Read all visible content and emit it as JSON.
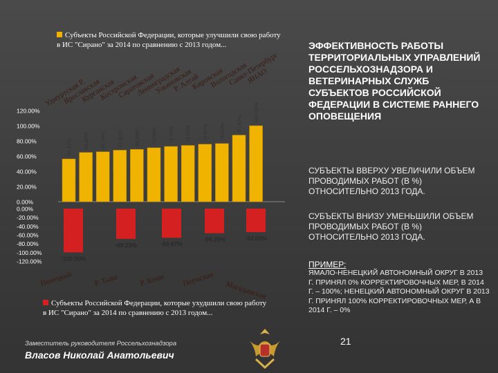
{
  "legend": {
    "positive": {
      "label": "Субъекты Российской Федерации, которые улучшили свою работу в ИС \"Сирано\" за 2014 по сравнению с 2013 годом...",
      "color": "#f0b400"
    },
    "negative": {
      "label": "Субъекты Российской Федерации, которые ухудшили свою работу в ИС \"Сирано\" за 2014 по сравнению с 2013 годом...",
      "color": "#d42020"
    }
  },
  "chart_data": {
    "type": "bar",
    "yaxis_ticks": [
      "120.00%",
      "100.00%",
      "80.00%",
      "60.00%",
      "40.00%",
      "20.00%",
      "0.00%",
      "0.00%",
      "-20.00%",
      "-40.00%",
      "-60.00%",
      "-80.00%",
      "-100.00%",
      "-120.00%"
    ],
    "ylim": [
      -120,
      120
    ],
    "positive_series": {
      "categories": [
        "Удмуртская Р.",
        "Ярославская",
        "Курганская",
        "Костромская",
        "Саратовская",
        "Ленинградская",
        "Ульяновская",
        "Р. Алтай",
        "Кировская",
        "Вологодская",
        "Санкт-Петербург",
        "ЯНАО"
      ],
      "values": [
        56.32,
        64.82,
        65.74,
        67.8,
        68.88,
        70.98,
        72.73,
        74.07,
        75.67,
        76.52,
        87.67,
        100.0
      ],
      "labels": [
        "56.32%",
        "64.82%",
        "65.74%",
        "67.80%",
        "68.88%",
        "70.98%",
        "72.73%",
        "74.07%",
        "75.67%",
        "76.52%",
        "87.67%",
        "100.00%"
      ]
    },
    "negative_series": {
      "categories": [
        "Ненецкий",
        "Р. Тыва",
        "Р. Коми",
        "Пермская",
        "Магаданская"
      ],
      "values": [
        -100.0,
        -69.23,
        -66.67,
        -56.25,
        -53.69
      ],
      "labels": [
        "-100.00%",
        "-69.23%",
        "-66.67%",
        "-56.25%",
        "-53.69%"
      ]
    }
  },
  "panel": {
    "heading": "ЭФФЕКТИВНОСТЬ РАБОТЫ ТЕРРИТОРИАЛЬНЫХ УПРАВЛЕНИЙ РОССЕЛЬХОЗНАДЗОРА И ВЕТЕРИНАРНЫХ СЛУЖБ СУБЪЕКТОВ РОССИЙСКОЙ ФЕДЕРАЦИИ В СИСТЕМЕ РАННЕГО ОПОВЕЩЕНИЯ",
    "note_up": "СУБЪЕКТЫ ВВЕРХУ УВЕЛИЧИЛИ ОБЪЕМ ПРОВОДИМЫХ РАБОТ (В %) ОТНОСИТЕЛЬНО 2013 ГОДА.",
    "note_down": "СУБЪЕКТЫ ВНИЗУ УМЕНЬШИЛИ ОБЪЕМ ПРОВОДИМЫХ РАБОТ (В %) ОТНОСИТЕЛЬНО 2013 ГОДА.",
    "example_title": "ПРИМЕР:",
    "example_body": "ЯМАЛО-НЕНЕЦКИЙ АВТОНОМНЫЙ ОКРУГ В 2013 Г. ПРИНЯЛ 0% КОРРЕКТИРОВОЧНЫХ МЕР, В 2014 Г. – 100%; НЕНЕЦКИЙ АВТОНОМНЫЙ ОКРУГ В 2013 Г. ПРИНЯЛ 100% КОРРЕКТИРОВОЧНЫХ МЕР, А В 2014 Г. – 0%"
  },
  "footer": {
    "role": "Заместитель руководителя Россельхознадзора",
    "name": "Власов Николай Анатольевич",
    "page_number": "21"
  }
}
